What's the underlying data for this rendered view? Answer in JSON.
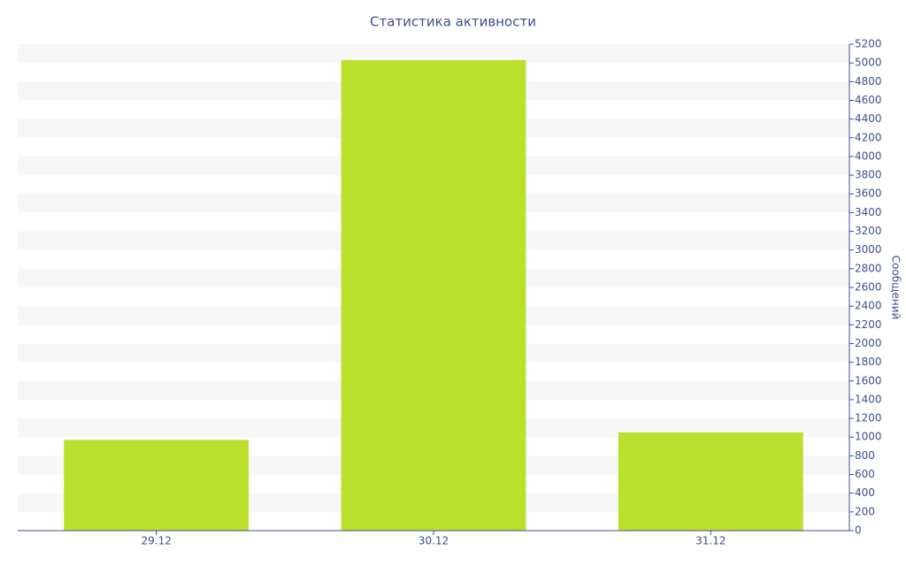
{
  "chart_data": {
    "type": "bar",
    "title": "Статистика активности",
    "y_label": "Сообщений",
    "categories": [
      "29.12",
      "30.12",
      "31.12"
    ],
    "values": [
      970,
      5030,
      1050
    ],
    "color": "#bce02e",
    "ylim": [
      0,
      5200
    ],
    "yticks": [
      0,
      200,
      400,
      600,
      800,
      1000,
      1200,
      1400,
      1600,
      1800,
      2000,
      2200,
      2400,
      2600,
      2800,
      3000,
      3200,
      3400,
      3600,
      3800,
      4000,
      4200,
      4400,
      4600,
      4800,
      5000,
      5200
    ],
    "grid": true
  }
}
